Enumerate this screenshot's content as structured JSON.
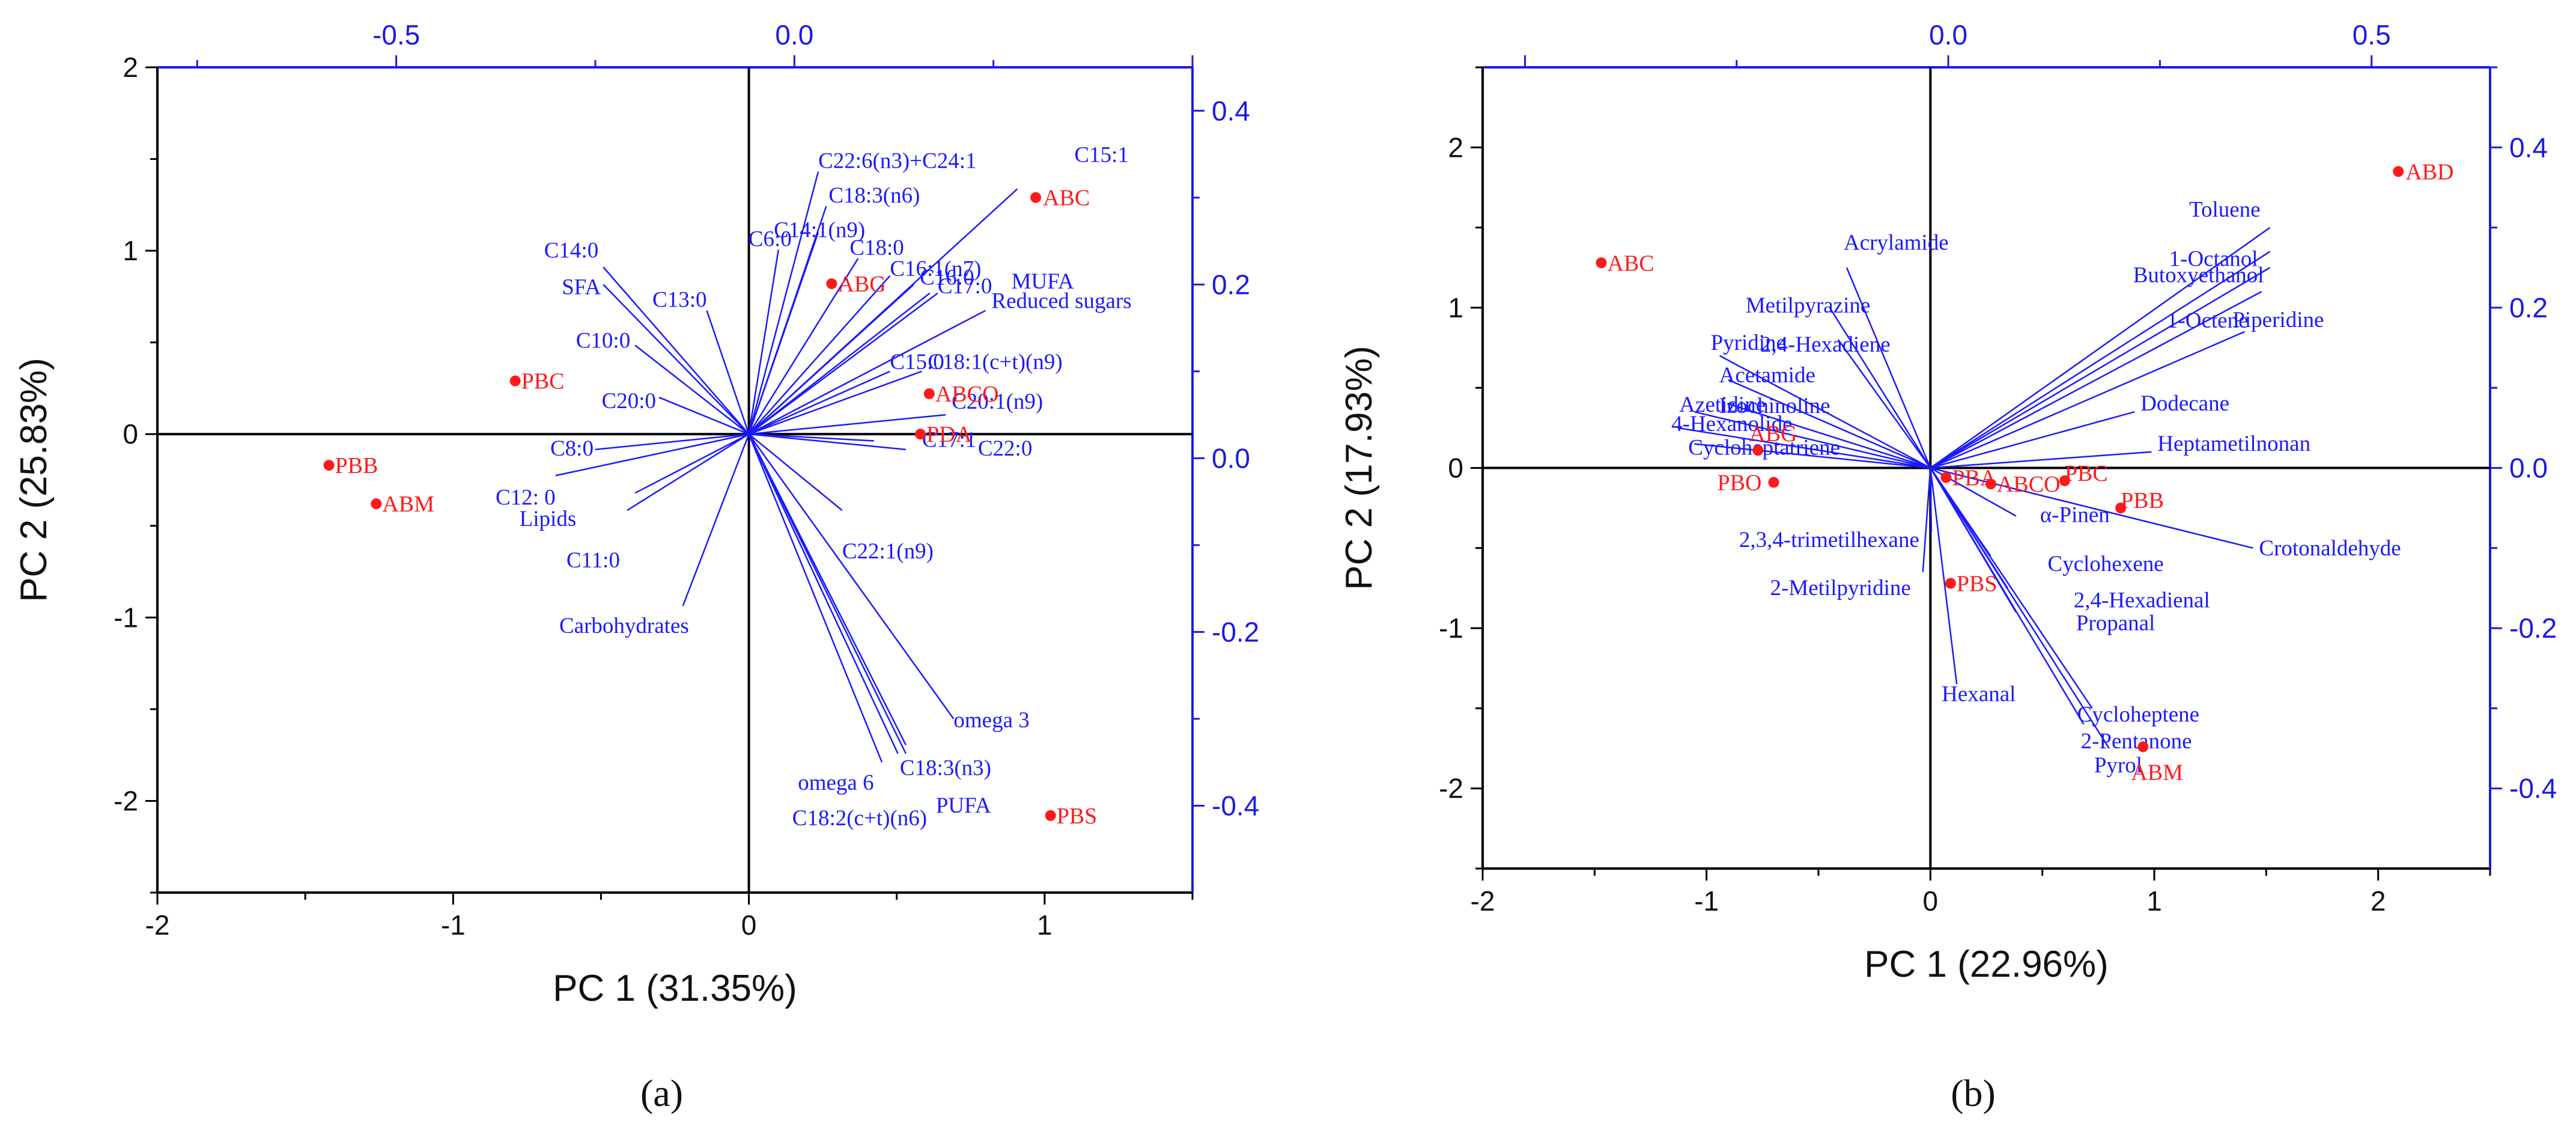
{
  "colors": {
    "vector": "#1a1aff",
    "sample": "#ff1a1a",
    "frame": "#000000",
    "secondary_axis": "#1a1ae6"
  },
  "chart_data": [
    {
      "type": "scatter",
      "panel_label": "a",
      "panel_text": "(a)",
      "title": "",
      "xlabel": "PC 1 (31.35%)",
      "ylabel": "PC 2 (25.83%)",
      "xlim": [
        -2,
        1.5
      ],
      "ylim": [
        -2.5,
        2
      ],
      "x_ticks": [
        "-2",
        "-1",
        "0",
        "1"
      ],
      "y_ticks": [
        "-2",
        "-1",
        "0",
        "1",
        "2"
      ],
      "x_tick_values": [
        -2,
        -1,
        0,
        1
      ],
      "y_tick_values": [
        -2,
        -1,
        0,
        1,
        2
      ],
      "top_axis": {
        "lim": [
          -0.8,
          0.5
        ],
        "ticks": [
          "-0.5",
          "0.0"
        ],
        "tick_values": [
          -0.5,
          0.0
        ]
      },
      "right_axis": {
        "lim": [
          -0.5,
          0.45
        ],
        "ticks": [
          "0.4",
          "0.2",
          "0.0",
          "-0.2",
          "-0.4"
        ],
        "tick_values": [
          0.4,
          0.2,
          0.0,
          -0.2,
          -0.4
        ]
      },
      "samples": [
        {
          "name": "ABC",
          "x": 0.97,
          "y": 1.29
        },
        {
          "name": "ABG",
          "x": 0.28,
          "y": 0.82
        },
        {
          "name": "ABCO",
          "x": 0.61,
          "y": 0.22
        },
        {
          "name": "PDA",
          "x": 0.58,
          "y": 0.0
        },
        {
          "name": "PBC",
          "x": -0.79,
          "y": 0.29
        },
        {
          "name": "PBB",
          "x": -1.42,
          "y": -0.17
        },
        {
          "name": "ABM",
          "x": -1.26,
          "y": -0.38
        },
        {
          "name": "PBS",
          "x": 1.02,
          "y": -2.08
        }
      ],
      "loadings": [
        {
          "name": "C22:6(n3)+C24:1",
          "x": 0.03,
          "y": 0.33
        },
        {
          "name": "C15:1",
          "x": 0.28,
          "y": 0.31
        },
        {
          "name": "C18:3(n6)",
          "x": 0.04,
          "y": 0.29
        },
        {
          "name": "C14:1(n9)",
          "x": 0.03,
          "y": 0.26
        },
        {
          "name": "C18:0",
          "x": 0.08,
          "y": 0.23
        },
        {
          "name": "C6:0",
          "x": -0.02,
          "y": 0.24
        },
        {
          "name": "C16:1(n7)",
          "x": 0.12,
          "y": 0.21
        },
        {
          "name": "C16:0",
          "x": 0.15,
          "y": 0.2
        },
        {
          "name": "C17:0",
          "x": 0.18,
          "y": 0.19
        },
        {
          "name": "MUFA",
          "x": 0.17,
          "y": 0.19
        },
        {
          "name": "Reduced sugars",
          "x": 0.24,
          "y": 0.17
        },
        {
          "name": "C15:0",
          "x": 0.12,
          "y": 0.1
        },
        {
          "name": "C18:1(c+t)(n9)",
          "x": 0.16,
          "y": 0.1
        },
        {
          "name": "C20:1(n9)",
          "x": 0.19,
          "y": 0.05
        },
        {
          "name": "C17:1",
          "x": 0.1,
          "y": 0.02
        },
        {
          "name": "C22:0",
          "x": 0.14,
          "y": 0.01
        },
        {
          "name": "C14:0",
          "x": -0.24,
          "y": 0.22
        },
        {
          "name": "SFA",
          "x": -0.24,
          "y": 0.2
        },
        {
          "name": "C13:0",
          "x": -0.11,
          "y": 0.17
        },
        {
          "name": "C10:0",
          "x": -0.2,
          "y": 0.13
        },
        {
          "name": "C20:0",
          "x": -0.17,
          "y": 0.07
        },
        {
          "name": "C8:0",
          "x": -0.25,
          "y": 0.01
        },
        {
          "name": "C12: 0",
          "x": -0.3,
          "y": -0.02
        },
        {
          "name": "Lipids",
          "x": -0.2,
          "y": -0.04
        },
        {
          "name": "C11:0",
          "x": -0.21,
          "y": -0.06
        },
        {
          "name": "Carbohydrates",
          "x": -0.14,
          "y": -0.17
        },
        {
          "name": "C22:1(n9)",
          "x": 0.06,
          "y": -0.06
        },
        {
          "name": "omega 3",
          "x": 0.2,
          "y": -0.3
        },
        {
          "name": "C18:3(n3)",
          "x": 0.14,
          "y": -0.33
        },
        {
          "name": "omega 6",
          "x": 0.13,
          "y": -0.34
        },
        {
          "name": "C18:2(c+t)(n6)",
          "x": 0.11,
          "y": -0.35
        },
        {
          "name": "PUFA",
          "x": 0.14,
          "y": -0.34
        }
      ]
    },
    {
      "type": "scatter",
      "panel_label": "b",
      "panel_text": "(b)",
      "title": "",
      "xlabel": "PC 1 (22.96%)",
      "ylabel": "PC 2 (17.93%)",
      "xlim": [
        -2,
        2.5
      ],
      "ylim": [
        -2.5,
        2.5
      ],
      "x_ticks": [
        "-2",
        "-1",
        "0",
        "1",
        "2"
      ],
      "y_ticks": [
        "-2",
        "-1",
        "0",
        "1",
        "2"
      ],
      "x_tick_values": [
        -2,
        -1,
        0,
        1,
        2
      ],
      "y_tick_values": [
        -2,
        -1,
        0,
        1,
        2
      ],
      "top_axis": {
        "lim": [
          -0.55,
          0.64
        ],
        "ticks": [
          "0.0",
          "0.5"
        ],
        "tick_values": [
          0.0,
          0.5
        ]
      },
      "right_axis": {
        "lim": [
          -0.5,
          0.5
        ],
        "ticks": [
          "0.4",
          "0.2",
          "0.0",
          "-0.2",
          "-0.4"
        ],
        "tick_values": [
          0.4,
          0.2,
          0.0,
          -0.2,
          -0.4
        ]
      },
      "samples": [
        {
          "name": "ABD",
          "x": 2.09,
          "y": 1.85
        },
        {
          "name": "ABC",
          "x": -1.47,
          "y": 1.28
        },
        {
          "name": "ABG",
          "x": -0.77,
          "y": 0.11
        },
        {
          "name": "PBO",
          "x": -0.7,
          "y": -0.09
        },
        {
          "name": "PBA",
          "x": 0.07,
          "y": -0.06
        },
        {
          "name": "ABCO",
          "x": 0.27,
          "y": -0.1
        },
        {
          "name": "PBC",
          "x": 0.6,
          "y": -0.08
        },
        {
          "name": "PBB",
          "x": 0.85,
          "y": -0.25
        },
        {
          "name": "PBS",
          "x": 0.09,
          "y": -0.72
        },
        {
          "name": "ABM",
          "x": 0.95,
          "y": -1.74
        }
      ],
      "loadings": [
        {
          "name": "Toluene",
          "x": 0.38,
          "y": 0.3
        },
        {
          "name": "1-Octanol",
          "x": 0.38,
          "y": 0.27
        },
        {
          "name": "Butoxyethanol",
          "x": 0.38,
          "y": 0.25
        },
        {
          "name": "1-Octene",
          "x": 0.37,
          "y": 0.22
        },
        {
          "name": "Piperidine",
          "x": 0.35,
          "y": 0.17
        },
        {
          "name": "Dodecane",
          "x": 0.22,
          "y": 0.07
        },
        {
          "name": "Heptametilnonan",
          "x": 0.24,
          "y": 0.02
        },
        {
          "name": "Crotonaldehyde",
          "x": 0.36,
          "y": -0.1
        },
        {
          "name": "Acrylamide",
          "x": -0.12,
          "y": 0.25
        },
        {
          "name": "Metilpyrazine",
          "x": -0.14,
          "y": 0.2
        },
        {
          "name": "2,4-Hexadiene",
          "x": -0.13,
          "y": 0.16
        },
        {
          "name": "Pyridine",
          "x": -0.27,
          "y": 0.14
        },
        {
          "name": "Acetamide",
          "x": -0.26,
          "y": 0.11
        },
        {
          "name": "Izochinoline",
          "x": -0.26,
          "y": 0.08
        },
        {
          "name": "Azetidine",
          "x": -0.3,
          "y": 0.07
        },
        {
          "name": "4-Hexanolide",
          "x": -0.32,
          "y": 0.05
        },
        {
          "name": "Cycloheptatriene",
          "x": -0.3,
          "y": 0.03
        },
        {
          "name": "2,3,4-trimetilhexane",
          "x": -0.02,
          "y": -0.08
        },
        {
          "name": "2-Metilpyridine",
          "x": -0.03,
          "y": -0.13
        },
        {
          "name": "α-Pinen",
          "x": 0.08,
          "y": -0.06
        },
        {
          "name": "Cyclohexene",
          "x": 0.05,
          "y": -0.11
        },
        {
          "name": "2,4-Hexadienal",
          "x": 0.07,
          "y": -0.15
        },
        {
          "name": "Propanal",
          "x": 0.08,
          "y": -0.18
        },
        {
          "name": "Hexanal",
          "x": 0.01,
          "y": -0.27
        },
        {
          "name": "Cycloheptene",
          "x": 0.17,
          "y": -0.3
        },
        {
          "name": "2-Pentanone",
          "x": 0.16,
          "y": -0.32
        },
        {
          "name": "Pyrol",
          "x": 0.19,
          "y": -0.35
        }
      ]
    }
  ]
}
